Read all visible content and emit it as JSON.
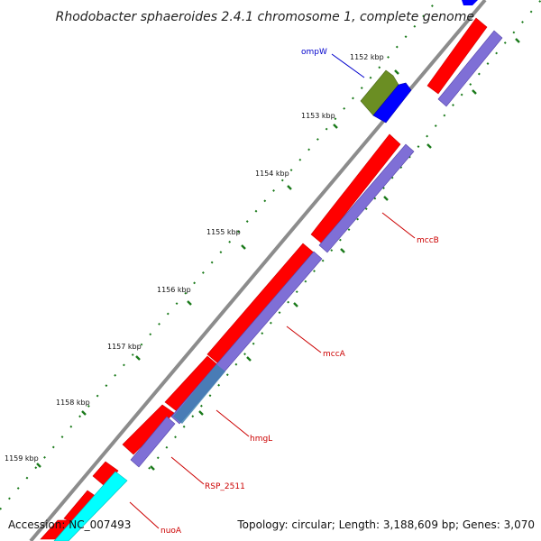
{
  "title": "Rhodobacter sphaeroides 2.4.1 chromosome 1, complete genome",
  "footer": {
    "accession": "Accession: NC_007493",
    "summary": "Topology: circular; Length: 3,188,609 bp; Genes: 3,070"
  },
  "ticks": [
    "1152 kbp",
    "1153 kbp",
    "1154 kbp",
    "1155 kbp",
    "1156 kbp",
    "1157 kbp",
    "1158 kbp",
    "1159 kbp"
  ],
  "genes": [
    "ompW",
    "mccB",
    "mccA",
    "hmgL",
    "RSP_2511",
    "nuoA"
  ],
  "colors": {
    "backbone": "#8c8c8c",
    "cds_forward": "#ff0000",
    "cds_reverse": "#7f6fd6",
    "cyan_feature": "#00ffff",
    "olive_feature": "#6b8e23",
    "blue_feature": "#0000ff",
    "label_red": "#cc0000",
    "label_blue": "#0000cc",
    "tick_green": "#1a7a1a"
  }
}
